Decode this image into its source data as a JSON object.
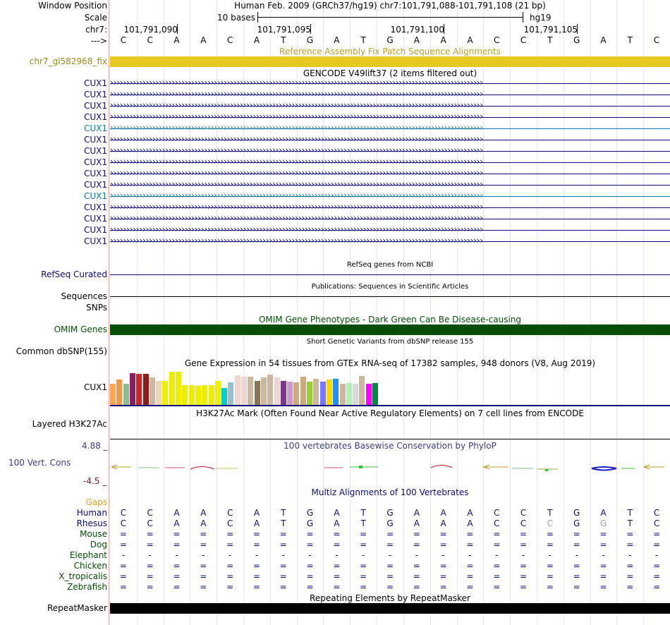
{
  "header": {
    "window_position_label": "Window Position",
    "window_position_value": "Human Feb. 2009 (GRCh37/hg19)   chr7:101,791,088-101,791,108 (21 bp)",
    "scale_label": "Scale",
    "scale_value": "10 bases",
    "assembly": "hg19",
    "chrom_label": "chr7:",
    "strand_label": "--->",
    "coordinates": [
      "101,791,090",
      "101,791,095",
      "101,791,100",
      "101,791,105"
    ]
  },
  "sequence": [
    "C",
    "C",
    "A",
    "A",
    "C",
    "A",
    "T",
    "G",
    "A",
    "T",
    "G",
    "A",
    "A",
    "A",
    "C",
    "C",
    "T",
    "G",
    "A",
    "T",
    "C"
  ],
  "tracks": {
    "fix_patch": {
      "title": "Reference Assembly Fix Patch Sequence Alignments",
      "label": "chr7_gl582968_fix",
      "color": "#e6c820"
    },
    "gencode": {
      "title": "GENCODE V49lift37 (2 items filtered out)",
      "items": [
        "CUX1",
        "CUX1",
        "CUX1",
        "CUX1",
        "CUX1",
        "CUX1",
        "CUX1",
        "CUX1",
        "CUX1",
        "CUX1",
        "CUX1",
        "CUX1",
        "CUX1",
        "CUX1",
        "CUX1"
      ],
      "highlight_rows": [
        4,
        10
      ],
      "color": "#0c0c78",
      "highlight_color": "#0a7a9a"
    },
    "refseq": {
      "title": "RefSeq genes from NCBI",
      "label": "RefSeq Curated"
    },
    "publications": {
      "title": "Publications: Sequences in Scientific Articles",
      "label": "Sequences"
    },
    "snps_label": "SNPs",
    "omim": {
      "title": "OMIM Gene Phenotypes - Dark Green Can Be Disease-causing",
      "label": "OMIM Genes",
      "color": "#064d06"
    },
    "dbsnp": {
      "title": "Short Genetic Variants from dbSNP release 155",
      "label": "Common dbSNP(155)"
    },
    "gtex": {
      "title": "Gene Expression in 54 tissues from GTEx RNA-seq of 17382 samples, 948 donors (V8, Aug 2019)",
      "label": "CUX1",
      "bar_values": [
        0.6,
        0.71,
        0.6,
        0.89,
        0.87,
        0.87,
        0.77,
        0.68,
        0.68,
        0.93,
        0.93,
        0.55,
        0.57,
        0.53,
        0.57,
        0.57,
        0.68,
        0.47,
        0.64,
        0.84,
        0.79,
        0.79,
        0.68,
        0.77,
        0.85,
        0.77,
        0.68,
        0.66,
        0.64,
        0.79,
        0.66,
        0.74,
        0.66,
        0.72,
        0.74,
        0.6,
        0.62,
        0.6,
        0.81,
        0.6,
        0.62
      ],
      "bar_colors": [
        "#ffa54f",
        "#ee9a49",
        "#8fbc8f",
        "#8b1c62",
        "#cd2626",
        "#8b1a1a",
        "#cdb79e",
        "#eed5b7",
        "#eeee00",
        "#eeee00",
        "#eeee00",
        "#eeee00",
        "#eeee00",
        "#eeee00",
        "#eeee00",
        "#eeee00",
        "#eeee00",
        "#00cdcd",
        "#9ac0cd",
        "#eed5d2",
        "#eed5d2",
        "#cdb79e",
        "#8b7355",
        "#cdb79e",
        "#cdb79e",
        "#eed5d2",
        "#7a378b",
        "#cd96cd",
        "#cdaa7d",
        "#cdaa7d",
        "#9acd32",
        "#cdb79e",
        "#7777ff",
        "#ffd700",
        "#1e90ff",
        "#cdb79e",
        "#b4eeb4",
        "#d9d9d9",
        "#cdb79e",
        "#ff00ff",
        "#008b45"
      ]
    },
    "h3k27ac": {
      "title": "H3K27Ac Mark (Often Found Near Active Regulatory Elements) on 7 cell lines from ENCODE",
      "label": "Layered H3K27Ac"
    },
    "phylop": {
      "title": "100 vertebrates Basewise Conservation by PhyloP",
      "label": "100 Vert. Cons",
      "max": "4.88 _",
      "min": "-4.5 _",
      "color": "#3c3c8c"
    },
    "multiz": {
      "title": "Multiz Alignments of 100 Vertebrates",
      "gaps_label": "Gaps",
      "species": [
        {
          "name": "Human",
          "bases": [
            "C",
            "C",
            "A",
            "A",
            "C",
            "A",
            "T",
            "G",
            "A",
            "T",
            "G",
            "A",
            "A",
            "A",
            "C",
            "C",
            "T",
            "G",
            "A",
            "T",
            "C"
          ]
        },
        {
          "name": "Rhesus",
          "bases": [
            "C",
            "C",
            "A",
            "A",
            "C",
            "A",
            "T",
            "G",
            "A",
            "T",
            "G",
            "A",
            "A",
            "A",
            "C",
            "C",
            "C",
            "G",
            "G",
            "T",
            "C"
          ]
        },
        {
          "name": "Mouse",
          "bases": [
            "=",
            "=",
            "=",
            "=",
            "=",
            "=",
            "=",
            "=",
            "=",
            "=",
            "=",
            "=",
            "=",
            "=",
            "=",
            "=",
            "=",
            "=",
            "=",
            "=",
            "="
          ]
        },
        {
          "name": "Dog",
          "bases": [
            "=",
            "=",
            "=",
            "=",
            "=",
            "=",
            "=",
            "=",
            "=",
            "=",
            "=",
            "=",
            "=",
            "=",
            "=",
            "=",
            "=",
            "=",
            "=",
            "=",
            "="
          ]
        },
        {
          "name": "Elephant",
          "bases": [
            "-",
            "-",
            "-",
            "-",
            "-",
            "-",
            "-",
            "-",
            "-",
            "-",
            "-",
            "-",
            "-",
            "-",
            "-",
            "-",
            "-",
            "-",
            "-",
            "-",
            "-"
          ]
        },
        {
          "name": "Chicken",
          "bases": [
            "=",
            "=",
            "=",
            "=",
            "=",
            "=",
            "=",
            "=",
            "=",
            "=",
            "=",
            "=",
            "=",
            "=",
            "=",
            "=",
            "=",
            "=",
            "=",
            "=",
            "="
          ]
        },
        {
          "name": "X_tropicalis",
          "bases": [
            "=",
            "=",
            "=",
            "=",
            "=",
            "=",
            "=",
            "=",
            "=",
            "=",
            "=",
            "=",
            "=",
            "=",
            "=",
            "=",
            "=",
            "=",
            "=",
            "=",
            "="
          ]
        },
        {
          "name": "Zebrafish",
          "bases": [
            "=",
            "=",
            "=",
            "=",
            "=",
            "=",
            "=",
            "=",
            "=",
            "=",
            "=",
            "=",
            "=",
            "=",
            "=",
            "=",
            "=",
            "=",
            "=",
            "=",
            "="
          ]
        }
      ]
    },
    "repeatmasker": {
      "title": "Repeating Elements by RepeatMasker",
      "label": "RepeatMasker"
    }
  }
}
